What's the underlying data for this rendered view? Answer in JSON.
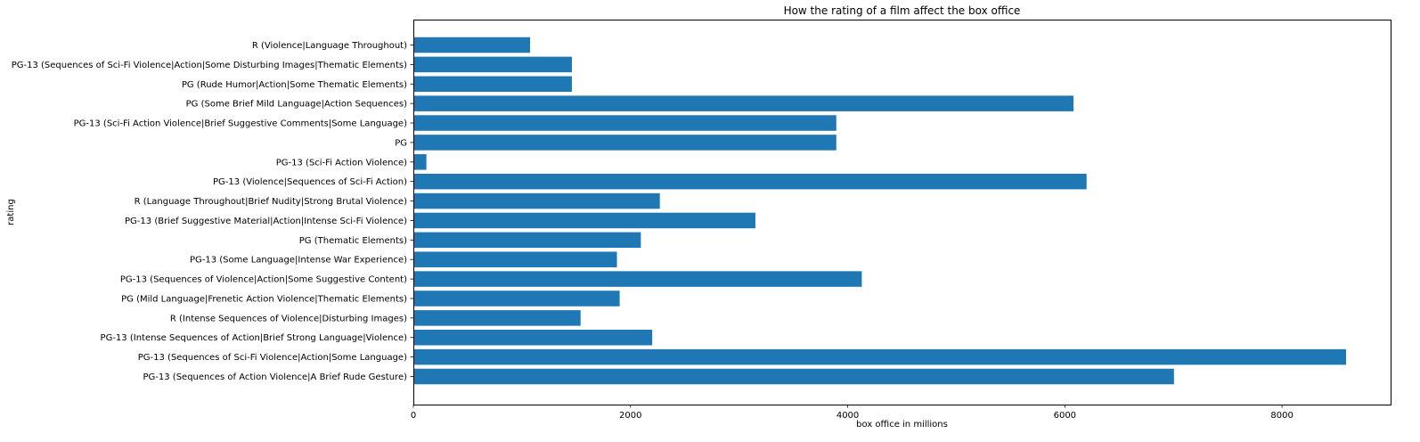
{
  "chart_data": {
    "type": "bar",
    "orientation": "horizontal",
    "title": "How the rating of a film affect the box office",
    "xlabel": "box office in millions",
    "ylabel": "rating",
    "xlim": [
      0,
      9000
    ],
    "x_ticks": [
      0,
      2000,
      4000,
      6000,
      8000
    ],
    "x_tick_labels": [
      "0",
      "2000",
      "4000",
      "6000",
      "8000"
    ],
    "grid": false,
    "bar_color": "#1f77b4",
    "categories": [
      "R (Violence|Language Throughout)",
      "PG-13 (Sequences of Sci-Fi Violence|Action|Some Disturbing Images|Thematic Elements)",
      "PG (Rude Humor|Action|Some Thematic Elements)",
      "PG (Some Brief Mild Language|Action Sequences)",
      "PG-13 (Sci-Fi Action Violence|Brief Suggestive Comments|Some Language)",
      "PG",
      "PG-13 (Sci-Fi Action Violence)",
      "PG-13 (Violence|Sequences of Sci-Fi Action)",
      "R (Language Throughout|Brief Nudity|Strong Brutal Violence)",
      "PG-13 (Brief Suggestive Material|Action|Intense Sci-Fi Violence)",
      "PG (Thematic Elements)",
      "PG-13 (Some Language|Intense War Experience)",
      "PG-13 (Sequences of Violence|Action|Some Suggestive Content)",
      "PG (Mild Language|Frenetic Action Violence|Thematic Elements)",
      "R (Intense Sequences of Violence|Disturbing Images)",
      "PG-13 (Intense Sequences of Action|Brief Strong Language|Violence)",
      "PG-13 (Sequences of Sci-Fi Violence|Action|Some Language)",
      "PG-13 (Sequences of Action Violence|A Brief Rude Gesture)"
    ],
    "values": [
      1075,
      1460,
      1460,
      6080,
      3895,
      3895,
      120,
      6200,
      2270,
      3150,
      2095,
      1875,
      4130,
      1900,
      1540,
      2200,
      8590,
      7005
    ]
  }
}
